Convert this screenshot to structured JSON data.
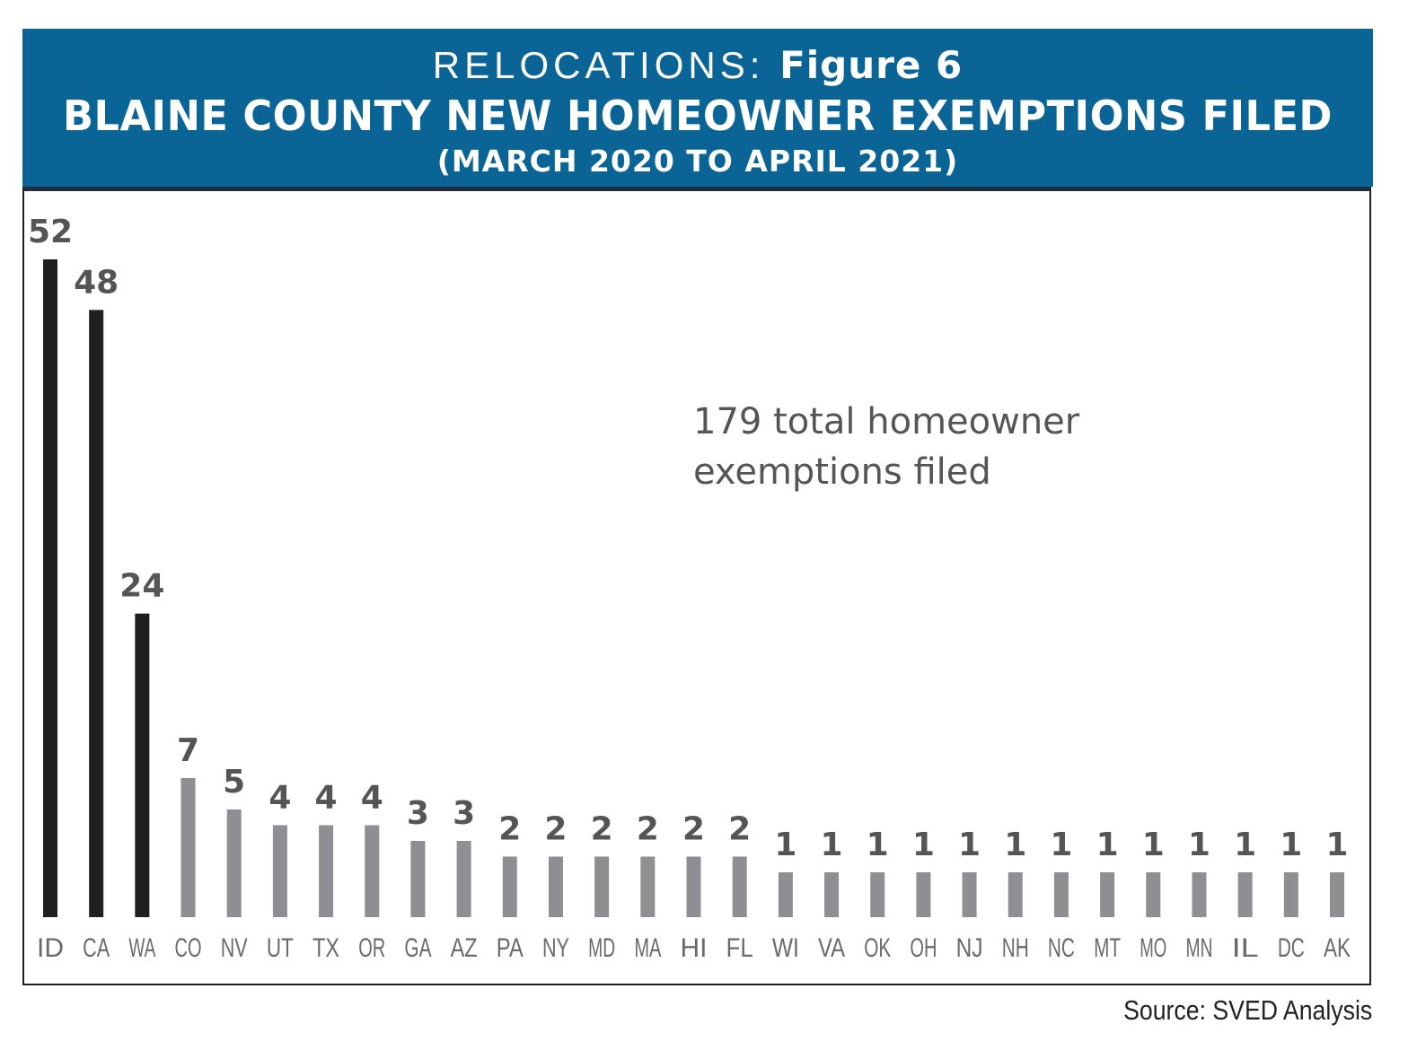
{
  "header": {
    "prefix": "RELOCATIONS:",
    "figure": "Figure 6",
    "title": "BLAINE COUNTY NEW HOMEOWNER EXEMPTIONS FILED",
    "subtitle": "(MARCH 2020 TO APRIL 2021)"
  },
  "annotation": {
    "line1": "179 total homeowner",
    "line2": "exemptions filed"
  },
  "source": "Source: SVED Analysis",
  "colors": {
    "header_bg": "#0a6496",
    "top_bar": "#1f1f1f",
    "other_bar": "#8f8f93",
    "value_label": "#555555",
    "category_label": "#6a6a6a"
  },
  "chart_data": {
    "type": "bar",
    "title": "BLAINE COUNTY NEW HOMEOWNER EXEMPTIONS FILED",
    "subtitle": "(MARCH 2020 TO APRIL 2021)",
    "categories": [
      "ID",
      "CA",
      "WA",
      "CO",
      "NV",
      "UT",
      "TX",
      "OR",
      "GA",
      "AZ",
      "PA",
      "NY",
      "MD",
      "MA",
      "HI",
      "FL",
      "WI",
      "VA",
      "OK",
      "OH",
      "NJ",
      "NH",
      "NC",
      "MT",
      "MO",
      "MN",
      "IL",
      "DC",
      "AK"
    ],
    "values": [
      52,
      48,
      24,
      7,
      5,
      4,
      4,
      4,
      3,
      3,
      2,
      2,
      2,
      2,
      2,
      2,
      1,
      1,
      1,
      1,
      1,
      1,
      1,
      1,
      1,
      1,
      1,
      1,
      1
    ],
    "highlighted_categories": [
      "ID",
      "CA",
      "WA"
    ],
    "xlabel": "",
    "ylabel": "",
    "grid": false,
    "legend": "none"
  }
}
